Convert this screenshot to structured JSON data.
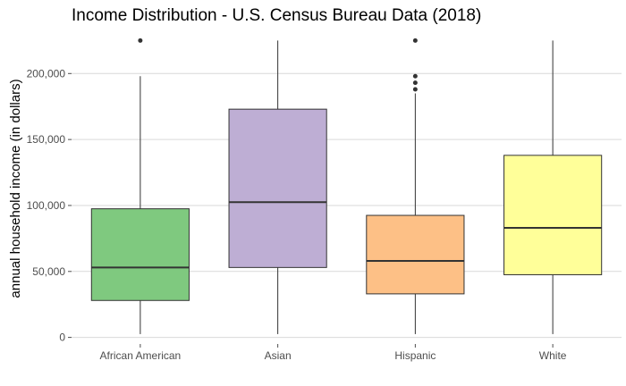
{
  "chart_data": {
    "type": "box",
    "title": "Income Distribution - U.S. Census Bureau Data (2018)",
    "xlabel": "",
    "ylabel": "annual household income (in dollars)",
    "ylim": [
      -5000,
      230000
    ],
    "yticks": [
      0,
      50000,
      100000,
      150000,
      200000
    ],
    "ytick_labels": [
      "0",
      "50,000",
      "100,000",
      "150,000",
      "200,000"
    ],
    "grid": true,
    "legend": "none",
    "categories": [
      "African American",
      "Asian",
      "Hispanic",
      "White"
    ],
    "colors": [
      "#7fc97f",
      "#beaed4",
      "#fdc086",
      "#ffff99"
    ],
    "boxes": [
      {
        "category": "African American",
        "whisker_low": 2500,
        "q1": 28000,
        "median": 53000,
        "q3": 97500,
        "whisker_high": 198000,
        "outliers": [
          225000
        ]
      },
      {
        "category": "Asian",
        "whisker_low": 2500,
        "q1": 53000,
        "median": 102500,
        "q3": 173000,
        "whisker_high": 225000,
        "outliers": []
      },
      {
        "category": "Hispanic",
        "whisker_low": 2500,
        "q1": 33000,
        "median": 58000,
        "q3": 92500,
        "whisker_high": 185000,
        "outliers": [
          188000,
          193000,
          198000,
          225000
        ]
      },
      {
        "category": "White",
        "whisker_low": 2500,
        "q1": 47500,
        "median": 83000,
        "q3": 138000,
        "whisker_high": 225000,
        "outliers": []
      }
    ]
  }
}
